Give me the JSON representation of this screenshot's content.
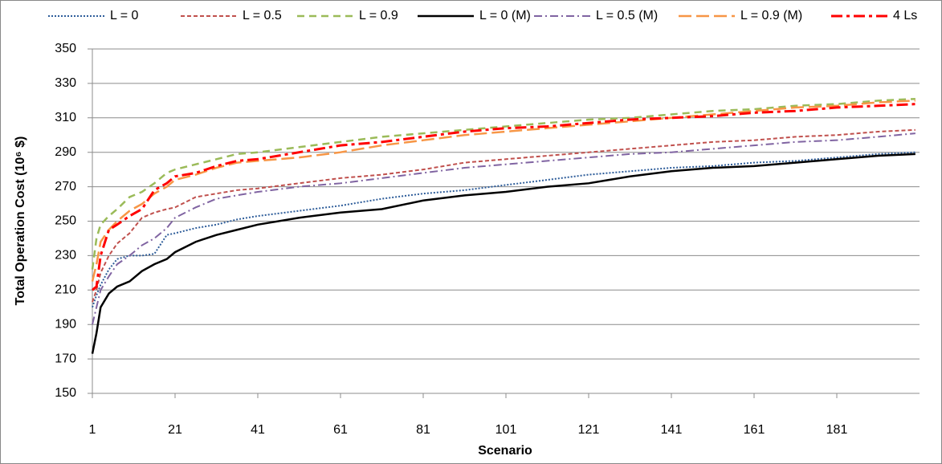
{
  "chart_data": {
    "type": "line",
    "x_label": "Scenario",
    "y_label": "Total Operation Cost (10⁶ $)",
    "xlim": [
      1,
      201
    ],
    "xticks": [
      1,
      21,
      41,
      61,
      81,
      101,
      121,
      141,
      161,
      181
    ],
    "ylim": [
      150,
      350
    ],
    "yticks": [
      150,
      170,
      190,
      210,
      230,
      250,
      270,
      290,
      310,
      330,
      350
    ],
    "grid": true,
    "legend": "top",
    "x": [
      1,
      2,
      3,
      5,
      7,
      10,
      13,
      16,
      19,
      21,
      26,
      31,
      36,
      41,
      51,
      61,
      71,
      81,
      91,
      101,
      111,
      121,
      131,
      141,
      151,
      161,
      171,
      181,
      191,
      200
    ],
    "series": [
      {
        "name": "L = 0",
        "color": "#2e5d9a",
        "style": "dotted",
        "width": 2,
        "values": [
          200,
          207,
          213,
          222,
          228,
          230,
          230,
          231,
          242,
          243,
          246,
          248,
          251,
          253,
          256,
          259,
          263,
          266,
          268,
          271,
          274,
          277,
          279,
          281,
          282,
          284,
          285,
          287,
          289,
          290
        ]
      },
      {
        "name": "L = 0.5",
        "color": "#c0504d",
        "style": "dashed",
        "width": 2,
        "values": [
          203,
          210,
          220,
          230,
          237,
          243,
          252,
          255,
          257,
          258,
          264,
          266,
          268,
          269,
          272,
          275,
          277,
          280,
          284,
          286,
          288,
          290,
          292,
          294,
          296,
          297,
          299,
          300,
          302,
          303
        ]
      },
      {
        "name": "L = 0.9",
        "color": "#9bbb59",
        "style": "dashed-long",
        "width": 2.5,
        "values": [
          222,
          240,
          248,
          253,
          257,
          264,
          267,
          272,
          278,
          280,
          283,
          286,
          289,
          290,
          293,
          296,
          299,
          301,
          303,
          305,
          307,
          309,
          310,
          312,
          314,
          315,
          317,
          318,
          320,
          321
        ]
      },
      {
        "name": "L = 0 (M)",
        "color": "#000000",
        "style": "solid",
        "width": 2.5,
        "values": [
          173,
          185,
          200,
          208,
          212,
          215,
          221,
          225,
          228,
          232,
          238,
          242,
          245,
          248,
          252,
          255,
          257,
          262,
          265,
          267,
          270,
          272,
          276,
          279,
          281,
          282,
          284,
          286,
          288,
          289
        ]
      },
      {
        "name": "L = 0.5 (M)",
        "color": "#8064a2",
        "style": "dashdot",
        "width": 2,
        "values": [
          190,
          200,
          210,
          218,
          225,
          230,
          236,
          240,
          246,
          252,
          258,
          263,
          265,
          267,
          270,
          272,
          275,
          278,
          281,
          283,
          285,
          287,
          289,
          290,
          292,
          294,
          296,
          297,
          299,
          301
        ]
      },
      {
        "name": "L = 0.9 (M)",
        "color": "#f79646",
        "style": "longdash",
        "width": 2.5,
        "values": [
          215,
          225,
          238,
          245,
          250,
          256,
          260,
          266,
          270,
          274,
          277,
          281,
          284,
          285,
          287,
          290,
          294,
          297,
          300,
          302,
          304,
          306,
          308,
          310,
          312,
          314,
          316,
          317,
          319,
          320
        ]
      },
      {
        "name": "4 Ls",
        "color": "#ff0000",
        "style": "dashdot-long",
        "width": 3,
        "values": [
          210,
          212,
          230,
          245,
          248,
          253,
          257,
          268,
          272,
          276,
          278,
          282,
          285,
          286,
          290,
          294,
          296,
          299,
          302,
          304,
          305,
          307,
          309,
          310,
          311,
          313,
          314,
          316,
          317,
          318
        ]
      }
    ]
  }
}
